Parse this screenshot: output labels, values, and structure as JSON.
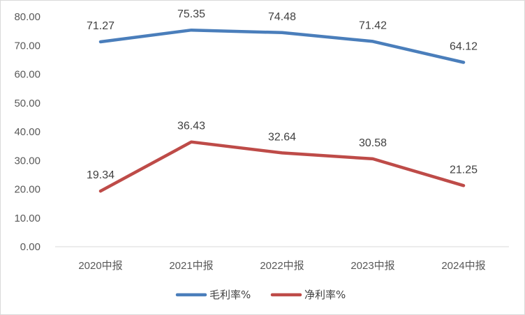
{
  "chart_data": {
    "type": "line",
    "categories": [
      "2020中报",
      "2021中报",
      "2022中报",
      "2023中报",
      "2024中报"
    ],
    "series": [
      {
        "name": "毛利率%",
        "values": [
          71.27,
          75.35,
          74.48,
          71.42,
          64.12
        ],
        "color": "#4a7ebb",
        "labels": [
          "71.27",
          "75.35",
          "74.48",
          "71.42",
          "64.12"
        ]
      },
      {
        "name": "净利率%",
        "values": [
          19.34,
          36.43,
          32.64,
          30.58,
          21.25
        ],
        "color": "#be4b48",
        "labels": [
          "19.34",
          "36.43",
          "32.64",
          "30.58",
          "21.25"
        ]
      }
    ],
    "ylim": [
      0,
      80
    ],
    "yticks": [
      "0.00",
      "10.00",
      "20.00",
      "30.00",
      "40.00",
      "50.00",
      "60.00",
      "70.00",
      "80.00"
    ],
    "grid": false,
    "legend": "bottom",
    "title": "",
    "xlabel": "",
    "ylabel": ""
  }
}
